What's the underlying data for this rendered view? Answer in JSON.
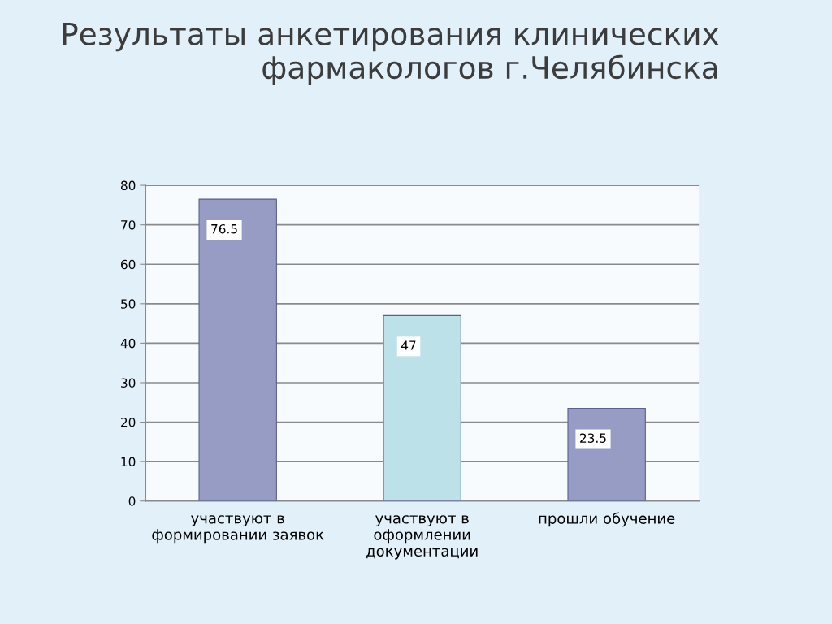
{
  "chart_data": {
    "type": "bar",
    "title": "Результаты анкетирования клинических\nфармакологов г.Челябинска",
    "categories": [
      "участвуют в\nформировании заявок",
      "участвуют в\nоформлении\nдокументации",
      "прошли обучение"
    ],
    "values": [
      76.5,
      47,
      23.5
    ],
    "colors": [
      "#8e96cc",
      "#b5e6f0",
      "#8e96cc"
    ],
    "ylim": [
      0,
      80
    ],
    "yticks": [
      0,
      10,
      20,
      30,
      40,
      50,
      60,
      70,
      80
    ],
    "grid": "y",
    "data_labels": true
  }
}
